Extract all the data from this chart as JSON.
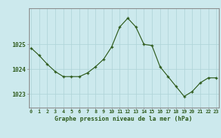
{
  "x": [
    0,
    1,
    2,
    3,
    4,
    5,
    6,
    7,
    8,
    9,
    10,
    11,
    12,
    13,
    14,
    15,
    16,
    17,
    18,
    19,
    20,
    21,
    22,
    23
  ],
  "y": [
    1024.85,
    1024.55,
    1024.2,
    1023.9,
    1023.7,
    1023.7,
    1023.7,
    1023.85,
    1024.1,
    1024.4,
    1024.9,
    1025.7,
    1026.05,
    1025.7,
    1025.0,
    1024.95,
    1024.1,
    1023.7,
    1023.3,
    1022.9,
    1023.1,
    1023.45,
    1023.65,
    1023.65
  ],
  "line_color": "#2d5a1b",
  "marker_color": "#2d5a1b",
  "bg_color": "#cce9ed",
  "grid_color": "#b0d4d8",
  "border_color": "#888888",
  "xlabel": "Graphe pression niveau de la mer (hPa)",
  "xlabel_color": "#2d5a1b",
  "tick_color": "#2d5a1b",
  "ytick_labels": [
    "1023",
    "1024",
    "1025"
  ],
  "yticks": [
    1023,
    1024,
    1025
  ],
  "ylim": [
    1022.45,
    1026.45
  ],
  "xlim": [
    -0.3,
    23.3
  ],
  "xticks": [
    0,
    1,
    2,
    3,
    4,
    5,
    6,
    7,
    8,
    9,
    10,
    11,
    12,
    13,
    14,
    15,
    16,
    17,
    18,
    19,
    20,
    21,
    22,
    23
  ]
}
